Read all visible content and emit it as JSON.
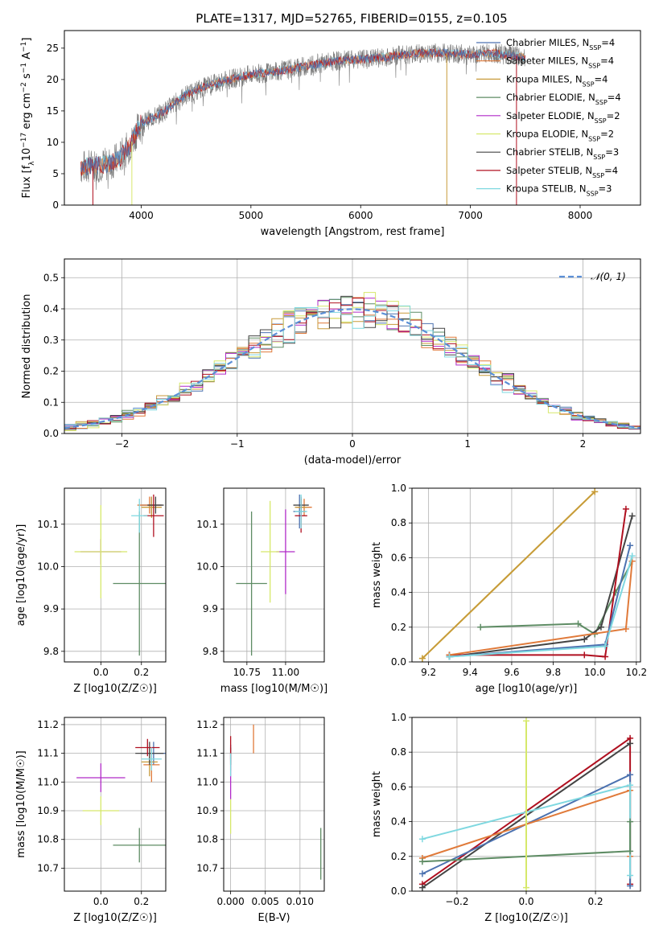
{
  "colors": {
    "chabrier_miles": "#4c72b0",
    "salpeter_miles": "#e07a3a",
    "kroupa_miles": "#c89a3a",
    "chabrier_elodie": "#5e8c64",
    "salpeter_elodie": "#b12ac8",
    "kroupa_elodie": "#d6e86a",
    "chabrier_stelib": "#444444",
    "salpeter_stelib": "#b01020",
    "kroupa_stelib": "#7fd8e0",
    "spectrum": "#7a7a7a",
    "gauss": "#5b8fd6"
  },
  "chart_data": [
    {
      "type": "line",
      "title": "PLATE=1317, MJD=52765, FIBERID=0155, z=0.105",
      "xlabel": "wavelength [Angstrom, rest frame]",
      "ylabel_parts": [
        "Flux [f",
        "λ",
        "10",
        "−17",
        " erg cm",
        "−2",
        " s",
        "−1",
        " A",
        "−1",
        "]"
      ],
      "xlim": [
        3300,
        8550
      ],
      "ylim": [
        0,
        27.8
      ],
      "xticks": [
        4000,
        5000,
        6000,
        7000,
        8000
      ],
      "yticks": [
        0,
        5,
        10,
        15,
        20,
        25
      ],
      "grid": false,
      "legend_position": "top-right",
      "legend": [
        {
          "model": "Chabrier MILES",
          "sub": "SSP",
          "n": "=4",
          "color_key": "chabrier_miles"
        },
        {
          "model": "Salpeter MILES",
          "sub": "SSP",
          "n": "=4",
          "color_key": "salpeter_miles"
        },
        {
          "model": "Kroupa MILES",
          "sub": "SSP",
          "n": "=4",
          "color_key": "kroupa_miles"
        },
        {
          "model": "Chabrier ELODIE",
          "sub": "SSP",
          "n": "=4",
          "color_key": "chabrier_elodie"
        },
        {
          "model": "Salpeter ELODIE",
          "sub": "SSP",
          "n": "=2",
          "color_key": "salpeter_elodie"
        },
        {
          "model": "Kroupa ELODIE",
          "sub": "SSP",
          "n": "=2",
          "color_key": "kroupa_elodie"
        },
        {
          "model": "Chabrier STELIB",
          "sub": "SSP",
          "n": "=3",
          "color_key": "chabrier_stelib"
        },
        {
          "model": "Salpeter STELIB",
          "sub": "SSP",
          "n": "=4",
          "color_key": "salpeter_stelib"
        },
        {
          "model": "Kroupa STELIB",
          "sub": "SSP",
          "n": "=3",
          "color_key": "kroupa_stelib"
        }
      ],
      "continuum": {
        "x": [
          3450,
          3600,
          3700,
          3800,
          3900,
          3950,
          4000,
          4200,
          4400,
          4600,
          4800,
          5000,
          5200,
          5400,
          5600,
          5800,
          6000,
          6200,
          6400,
          6600,
          6800,
          7000,
          7200,
          7400,
          7500
        ],
        "y": [
          6.0,
          6.4,
          6.5,
          7.5,
          9.5,
          11.5,
          13.0,
          14.8,
          17.5,
          19.0,
          20.0,
          20.8,
          21.2,
          21.8,
          22.5,
          23.0,
          23.2,
          23.5,
          24.0,
          24.2,
          24.2,
          24.0,
          24.2,
          23.8,
          23.5
        ]
      },
      "spikes": [
        {
          "x": 3560,
          "y": 0,
          "color_key": "salpeter_stelib"
        },
        {
          "x": 3915,
          "y": 0,
          "color_key": "kroupa_elodie"
        },
        {
          "x": 6785,
          "y": 0,
          "color_key": "kroupa_miles"
        },
        {
          "x": 7420,
          "y": 0,
          "color_key": "salpeter_stelib"
        }
      ]
    },
    {
      "type": "histogram",
      "xlabel": "(data-model)/error",
      "ylabel": "Normed distribution",
      "xlim": [
        -2.5,
        2.5
      ],
      "ylim": [
        0,
        0.56
      ],
      "xticks": [
        -2,
        -1,
        0,
        1,
        2
      ],
      "yticks": [
        0.0,
        0.1,
        0.2,
        0.3,
        0.4,
        0.5
      ],
      "grid": true,
      "legend_position": "top-right",
      "legend": [
        {
          "label": "𝒩(0, 1)",
          "style": "dashed",
          "color_key": "gauss"
        }
      ],
      "bins": {
        "start": -2.5,
        "width": 0.1,
        "count": 50
      }
    },
    {
      "type": "scatter",
      "panel": "age-vs-Z",
      "xlabel": "Z [log10(Z/Z☉)]",
      "ylabel": "age [log10(age/yr)]",
      "xlim": [
        -0.18,
        0.32
      ],
      "ylim": [
        9.775,
        10.185
      ],
      "xticks": [
        0.0,
        0.2
      ],
      "yticks": [
        9.8,
        9.9,
        10.0,
        10.1
      ],
      "grid": true,
      "points": [
        {
          "color_key": "chabrier_miles",
          "x": 0.25,
          "xerr": 0.05,
          "y": 10.145,
          "yerr": 0.02
        },
        {
          "color_key": "salpeter_miles",
          "x": 0.24,
          "xerr": 0.06,
          "y": 10.145,
          "yerr": 0.02
        },
        {
          "color_key": "kroupa_miles",
          "x": 0.25,
          "xerr": 0.05,
          "y": 10.14,
          "yerr": 0.025
        },
        {
          "color_key": "chabrier_elodie",
          "x": 0.19,
          "xerr": 0.13,
          "y": 9.96,
          "yerr": 0.17
        },
        {
          "color_key": "salpeter_elodie",
          "x": 0.0,
          "xerr": 0.1,
          "y": 10.035,
          "yerr": 0.03
        },
        {
          "color_key": "kroupa_elodie",
          "x": 0.0,
          "xerr": 0.13,
          "y": 10.035,
          "yerr": 0.11
        },
        {
          "color_key": "chabrier_stelib",
          "x": 0.27,
          "xerr": 0.04,
          "y": 10.145,
          "yerr": 0.02
        },
        {
          "color_key": "salpeter_stelib",
          "x": 0.26,
          "xerr": 0.05,
          "y": 10.12,
          "yerr": 0.05
        },
        {
          "color_key": "kroupa_stelib",
          "x": 0.19,
          "xerr": 0.04,
          "y": 10.12,
          "yerr": 0.04
        }
      ]
    },
    {
      "type": "scatter",
      "panel": "age-vs-mass",
      "xlabel": "mass [log10(M/M☉)]",
      "ylabel": "",
      "xlim": [
        10.6,
        11.25
      ],
      "ylim": [
        9.775,
        10.185
      ],
      "xticks": [
        10.75,
        11.0
      ],
      "yticks": [
        9.8,
        9.9,
        10.0,
        10.1
      ],
      "grid": true,
      "points": [
        {
          "color_key": "chabrier_miles",
          "x": 11.09,
          "xerr": 0.04,
          "y": 10.13,
          "yerr": 0.04
        },
        {
          "color_key": "salpeter_miles",
          "x": 11.12,
          "xerr": 0.05,
          "y": 10.14,
          "yerr": 0.02
        },
        {
          "color_key": "kroupa_miles",
          "x": 11.1,
          "xerr": 0.04,
          "y": 10.14,
          "yerr": 0.02
        },
        {
          "color_key": "chabrier_elodie",
          "x": 10.78,
          "xerr": 0.1,
          "y": 9.96,
          "yerr": 0.17
        },
        {
          "color_key": "salpeter_elodie",
          "x": 11.0,
          "xerr": 0.06,
          "y": 10.035,
          "yerr": 0.1
        },
        {
          "color_key": "kroupa_elodie",
          "x": 10.9,
          "xerr": 0.06,
          "y": 10.035,
          "yerr": 0.12
        },
        {
          "color_key": "chabrier_stelib",
          "x": 11.1,
          "xerr": 0.05,
          "y": 10.145,
          "yerr": 0.02
        },
        {
          "color_key": "salpeter_stelib",
          "x": 11.1,
          "xerr": 0.04,
          "y": 10.12,
          "yerr": 0.04
        },
        {
          "color_key": "kroupa_stelib",
          "x": 11.1,
          "xerr": 0.04,
          "y": 10.13,
          "yerr": 0.04
        }
      ]
    },
    {
      "type": "line",
      "panel": "weight-vs-age",
      "xlabel": "age [log10(age/yr)]",
      "ylabel": "mass weight",
      "xlim": [
        9.12,
        10.22
      ],
      "ylim": [
        0,
        1.0
      ],
      "xticks": [
        9.2,
        9.4,
        9.6,
        9.8,
        10.0,
        10.2
      ],
      "yticks": [
        0.0,
        0.2,
        0.4,
        0.6,
        0.8,
        1.0
      ],
      "grid": true,
      "series": [
        {
          "color_key": "kroupa_elodie",
          "x": [
            9.17,
            10.0
          ],
          "y": [
            0.02,
            0.98
          ]
        },
        {
          "color_key": "kroupa_miles",
          "x": [
            9.17,
            10.0
          ],
          "y": [
            0.02,
            0.98
          ]
        },
        {
          "color_key": "chabrier_elodie",
          "x": [
            9.45,
            9.92,
            10.0,
            10.1,
            10.18
          ],
          "y": [
            0.2,
            0.22,
            0.16,
            0.4,
            0.58
          ]
        },
        {
          "color_key": "chabrier_stelib",
          "x": [
            9.3,
            9.95,
            10.03,
            10.18
          ],
          "y": [
            0.03,
            0.13,
            0.2,
            0.84
          ]
        },
        {
          "color_key": "salpeter_stelib",
          "x": [
            9.3,
            9.95,
            10.05,
            10.15
          ],
          "y": [
            0.04,
            0.04,
            0.03,
            0.88
          ]
        },
        {
          "color_key": "chabrier_miles",
          "x": [
            9.3,
            10.05,
            10.17
          ],
          "y": [
            0.03,
            0.1,
            0.67
          ]
        },
        {
          "color_key": "salpeter_miles",
          "x": [
            9.3,
            10.15,
            10.18
          ],
          "y": [
            0.04,
            0.19,
            0.58
          ]
        },
        {
          "color_key": "kroupa_stelib",
          "x": [
            9.3,
            10.05,
            10.18
          ],
          "y": [
            0.03,
            0.09,
            0.61
          ]
        }
      ]
    },
    {
      "type": "scatter",
      "panel": "mass-vs-Z",
      "xlabel": "Z [log10(Z/Z☉)]",
      "ylabel": "mass [log10(M/M☉)]",
      "xlim": [
        -0.18,
        0.32
      ],
      "ylim": [
        10.62,
        11.225
      ],
      "xticks": [
        0.0,
        0.2
      ],
      "yticks": [
        10.7,
        10.8,
        10.9,
        11.0,
        11.1,
        11.2
      ],
      "grid": true,
      "points": [
        {
          "color_key": "chabrier_miles",
          "x": 0.26,
          "xerr": 0.06,
          "y": 11.1,
          "yerr": 0.04
        },
        {
          "color_key": "salpeter_miles",
          "x": 0.25,
          "xerr": 0.04,
          "y": 11.06,
          "yerr": 0.06
        },
        {
          "color_key": "kroupa_miles",
          "x": 0.24,
          "xerr": 0.04,
          "y": 11.07,
          "yerr": 0.05
        },
        {
          "color_key": "chabrier_elodie",
          "x": 0.19,
          "xerr": 0.13,
          "y": 10.78,
          "yerr": 0.06
        },
        {
          "color_key": "salpeter_elodie",
          "x": 0.0,
          "xerr": 0.12,
          "y": 11.015,
          "yerr": 0.05
        },
        {
          "color_key": "kroupa_elodie",
          "x": 0.0,
          "xerr": 0.09,
          "y": 10.9,
          "yerr": 0.05
        },
        {
          "color_key": "chabrier_stelib",
          "x": 0.24,
          "xerr": 0.07,
          "y": 11.1,
          "yerr": 0.04
        },
        {
          "color_key": "salpeter_stelib",
          "x": 0.23,
          "xerr": 0.06,
          "y": 11.12,
          "yerr": 0.03
        },
        {
          "color_key": "kroupa_stelib",
          "x": 0.25,
          "xerr": 0.05,
          "y": 11.08,
          "yerr": 0.04
        }
      ]
    },
    {
      "type": "scatter",
      "panel": "mass-vs-ebv",
      "xlabel": "E(B-V)",
      "ylabel": "",
      "xlim": [
        -0.001,
        0.0135
      ],
      "ylim": [
        10.62,
        11.225
      ],
      "xticks": [
        0.0,
        0.005,
        0.01
      ],
      "yticks": [
        10.7,
        10.8,
        10.9,
        11.0,
        11.1,
        11.2
      ],
      "grid": true,
      "points": [
        {
          "color_key": "chabrier_miles",
          "x": 0.0,
          "xerr": 0.0,
          "y": 11.1,
          "yerr": 0.03
        },
        {
          "color_key": "salpeter_miles",
          "x": 0.0033,
          "xerr": 0.0,
          "y": 11.15,
          "yerr": 0.05
        },
        {
          "color_key": "kroupa_miles",
          "x": 0.0,
          "xerr": 0.0,
          "y": 11.07,
          "yerr": 0.03
        },
        {
          "color_key": "chabrier_elodie",
          "x": 0.013,
          "xerr": 0.0,
          "y": 10.75,
          "yerr": 0.09
        },
        {
          "color_key": "salpeter_elodie",
          "x": 0.0,
          "xerr": 0.0,
          "y": 11.02,
          "yerr": 0.08
        },
        {
          "color_key": "kroupa_elodie",
          "x": 0.0,
          "xerr": 0.0,
          "y": 10.88,
          "yerr": 0.06
        },
        {
          "color_key": "chabrier_stelib",
          "x": 0.0,
          "xerr": 0.0,
          "y": 11.09,
          "yerr": 0.03
        },
        {
          "color_key": "salpeter_stelib",
          "x": 0.0,
          "xerr": 0.0,
          "y": 11.12,
          "yerr": 0.04
        },
        {
          "color_key": "kroupa_stelib",
          "x": 0.0,
          "xerr": 0.0,
          "y": 11.06,
          "yerr": 0.04
        }
      ]
    },
    {
      "type": "line",
      "panel": "weight-vs-Z",
      "xlabel": "Z [log10(Z/Z☉)]",
      "ylabel": "mass weight",
      "xlim": [
        -0.33,
        0.33
      ],
      "ylim": [
        0,
        1.0
      ],
      "xticks": [
        -0.2,
        0.0,
        0.2
      ],
      "yticks": [
        0.0,
        0.2,
        0.4,
        0.6,
        0.8,
        1.0
      ],
      "grid": true,
      "series": [
        {
          "color_key": "salpeter_stelib",
          "x": [
            -0.3,
            0.3,
            0.3
          ],
          "y": [
            0.04,
            0.88,
            0.04
          ]
        },
        {
          "color_key": "chabrier_stelib",
          "x": [
            -0.3,
            0.3
          ],
          "y": [
            0.02,
            0.85
          ]
        },
        {
          "color_key": "chabrier_miles",
          "x": [
            -0.3,
            0.3,
            0.3
          ],
          "y": [
            0.1,
            0.67,
            0.03
          ]
        },
        {
          "color_key": "salpeter_miles",
          "x": [
            -0.3,
            0.3,
            0.3
          ],
          "y": [
            0.19,
            0.58,
            0.2
          ]
        },
        {
          "color_key": "kroupa_stelib",
          "x": [
            -0.3,
            0.3,
            0.3
          ],
          "y": [
            0.3,
            0.61,
            0.09
          ]
        },
        {
          "color_key": "chabrier_elodie",
          "x": [
            -0.3,
            0.3,
            0.3
          ],
          "y": [
            0.17,
            0.23,
            0.4
          ]
        },
        {
          "color_key": "kroupa_elodie",
          "x": [
            0.0,
            0.0
          ],
          "y": [
            0.02,
            0.98
          ]
        }
      ]
    }
  ]
}
